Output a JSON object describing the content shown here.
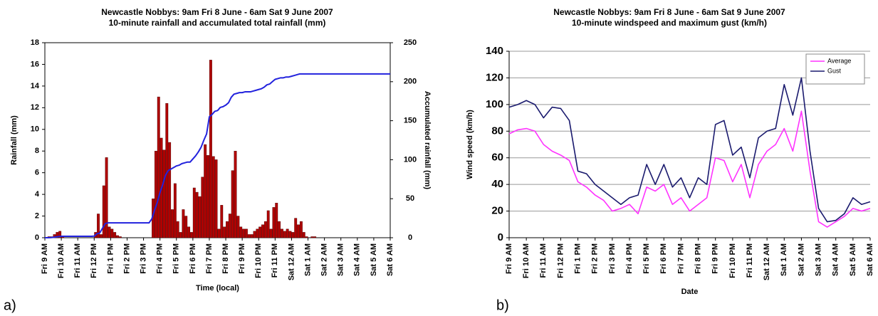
{
  "chart_data": [
    {
      "type": "bar",
      "panel_label": "a)",
      "title": "Newcastle Nobbys: 9am Fri 8 June  -  6am Sat 9 June 2007",
      "subtitle": "10-minute rainfall and accumulated total rainfall (mm)",
      "x_label": "Time (local)",
      "y_label": "Rainfall (mm)",
      "y2_label": "Accumulated rainfall (mm)",
      "categories": [
        "Fri 9 AM",
        null,
        null,
        null,
        null,
        null,
        "Fri 10 AM",
        null,
        null,
        null,
        null,
        null,
        "Fri 11 AM",
        null,
        null,
        null,
        null,
        null,
        "Fri 12 PM",
        null,
        null,
        null,
        null,
        null,
        "Fri 1 PM",
        null,
        null,
        null,
        null,
        null,
        "Fri 2 PM",
        null,
        null,
        null,
        null,
        null,
        "Fri 3 PM",
        null,
        null,
        null,
        null,
        null,
        "Fri 4 PM",
        null,
        null,
        null,
        null,
        null,
        "Fri 5 PM",
        null,
        null,
        null,
        null,
        null,
        "Fri 6 PM",
        null,
        null,
        null,
        null,
        null,
        "Fri 7 PM",
        null,
        null,
        null,
        null,
        null,
        "Fri 8 PM",
        null,
        null,
        null,
        null,
        null,
        "Fri 9 PM",
        null,
        null,
        null,
        null,
        null,
        "Fri 10 PM",
        null,
        null,
        null,
        null,
        null,
        "Fri 11 PM",
        null,
        null,
        null,
        null,
        null,
        "Sat 12 AM",
        null,
        null,
        null,
        null,
        null,
        "Sat 1 AM",
        null,
        null,
        null,
        null,
        null,
        "Sat 2 AM",
        null,
        null,
        null,
        null,
        null,
        "Sat 3 AM",
        null,
        null,
        null,
        null,
        null,
        "Sat 4 AM",
        null,
        null,
        null,
        null,
        null,
        "Sat 5 AM",
        null,
        null,
        null,
        null,
        null,
        "Sat 6 AM"
      ],
      "series": [
        {
          "name": "10-minute rainfall",
          "type": "bar",
          "color": "#b00000",
          "values": [
            0,
            0.1,
            0.1,
            0.3,
            0.5,
            0.6,
            0.1,
            0,
            0,
            0,
            0,
            0,
            0,
            0,
            0,
            0,
            0,
            0,
            0.5,
            2.2,
            0.3,
            4.8,
            7.4,
            1.0,
            0.8,
            0.5,
            0.2,
            0.1,
            0,
            0,
            0,
            0,
            0,
            0,
            0,
            0,
            0,
            0,
            0,
            3.6,
            8.0,
            13.0,
            9.2,
            8.1,
            12.4,
            8.8,
            2.6,
            5.0,
            1.5,
            0.5,
            2.6,
            2.0,
            1.0,
            0.5,
            4.6,
            4.2,
            3.8,
            5.6,
            8.6,
            7.6,
            16.4,
            7.5,
            7.2,
            0.8,
            3.0,
            1.0,
            1.5,
            2.2,
            6.2,
            8.0,
            2.0,
            1.0,
            0.8,
            0.8,
            0.3,
            0.3,
            0.6,
            0.8,
            1.0,
            1.2,
            1.5,
            2.5,
            0.8,
            2.8,
            3.2,
            1.5,
            0.8,
            0.6,
            0.8,
            0.6,
            0.5,
            1.8,
            1.2,
            1.5,
            0.5,
            0.1,
            0,
            0.1,
            0.1,
            0,
            0,
            0,
            0,
            0,
            0,
            0,
            0,
            0,
            0,
            0,
            0,
            0,
            0,
            0,
            0,
            0,
            0,
            0,
            0,
            0,
            0,
            0,
            0,
            0,
            0,
            0,
            0
          ]
        },
        {
          "name": "Accumulated rainfall",
          "type": "line",
          "axis": "y2",
          "color": "#2222dd",
          "values": [
            0,
            0,
            0.1,
            0.5,
            1,
            1.5,
            1.8,
            1.8,
            1.8,
            1.8,
            1.8,
            1.8,
            1.8,
            1.8,
            1.8,
            1.8,
            1.8,
            1.8,
            2,
            5,
            6,
            12,
            18,
            19,
            19,
            19,
            19,
            19,
            19,
            19,
            19,
            19,
            19,
            19,
            19,
            19,
            19,
            19,
            19,
            24,
            35,
            45,
            58,
            68,
            80,
            86,
            88,
            90,
            92,
            93,
            95,
            96,
            97,
            97,
            101,
            105,
            110,
            116,
            125,
            133,
            155,
            158,
            162,
            163,
            167,
            168,
            170,
            173,
            180,
            184,
            185,
            186,
            186,
            187,
            187,
            187,
            188,
            189,
            190,
            191,
            193,
            196,
            197,
            200,
            203,
            204,
            205,
            205,
            206,
            206,
            207,
            208,
            209,
            210,
            210,
            210,
            210,
            210,
            210,
            210,
            210,
            210,
            210,
            210,
            210,
            210,
            210,
            210,
            210,
            210,
            210,
            210,
            210,
            210,
            210,
            210,
            210,
            210,
            210,
            210,
            210,
            210,
            210,
            210,
            210,
            210,
            210
          ]
        }
      ],
      "ylim": [
        0,
        18
      ],
      "yticks": [
        0,
        2,
        4,
        6,
        8,
        10,
        12,
        14,
        16,
        18
      ],
      "y2lim": [
        0,
        250
      ],
      "y2ticks": [
        0,
        50,
        100,
        150,
        200,
        250
      ],
      "grid": false
    },
    {
      "type": "line",
      "panel_label": "b)",
      "title": "Newcastle Nobbys: 9am Fri 8 June  -  6am Sat 9 June 2007",
      "subtitle": "10-minute windspeed and maximum gust (km/h)",
      "x_label": "Date",
      "y_label": "Wind speed (km/h)",
      "categories": [
        "Fri 9 AM",
        null,
        "Fri 10 AM",
        null,
        "Fri 11 AM",
        null,
        "Fri 12 PM",
        null,
        "Fri 1 PM",
        null,
        "Fri 2 PM",
        null,
        "Fri 3 PM",
        null,
        "Fri 4 PM",
        null,
        "Fri 5 PM",
        null,
        "Fri 6 PM",
        null,
        "Fri 7 PM",
        null,
        "Fri 8 PM",
        null,
        "Fri 9 PM",
        null,
        "Fri 10 PM",
        null,
        "Fri 11 PM",
        null,
        "Sat 12 AM",
        null,
        "Sat 1 AM",
        null,
        "Sat 2 AM",
        null,
        "Sat 3 AM",
        null,
        "Sat 4 AM",
        null,
        "Sat 5 AM",
        null,
        "Sat 6 AM"
      ],
      "series": [
        {
          "name": "Average",
          "color": "#ff33ff",
          "values": [
            78,
            81,
            82,
            80,
            70,
            65,
            62,
            58,
            42,
            38,
            32,
            28,
            20,
            22,
            25,
            18,
            38,
            35,
            40,
            25,
            30,
            20,
            25,
            30,
            60,
            58,
            42,
            55,
            30,
            55,
            65,
            70,
            82,
            65,
            95,
            50,
            12,
            8,
            12,
            16,
            22,
            20,
            22
          ]
        },
        {
          "name": "Gust",
          "color": "#1a1a6e",
          "values": [
            98,
            100,
            103,
            100,
            90,
            98,
            97,
            88,
            50,
            48,
            40,
            35,
            30,
            25,
            30,
            32,
            55,
            40,
            55,
            38,
            45,
            30,
            45,
            40,
            85,
            88,
            62,
            68,
            45,
            75,
            80,
            82,
            115,
            92,
            120,
            65,
            22,
            12,
            13,
            18,
            30,
            25,
            27
          ]
        }
      ],
      "ylim": [
        0,
        140
      ],
      "yticks": [
        0,
        20,
        40,
        60,
        80,
        100,
        120,
        140
      ],
      "grid": true,
      "legend": "upper right"
    }
  ]
}
